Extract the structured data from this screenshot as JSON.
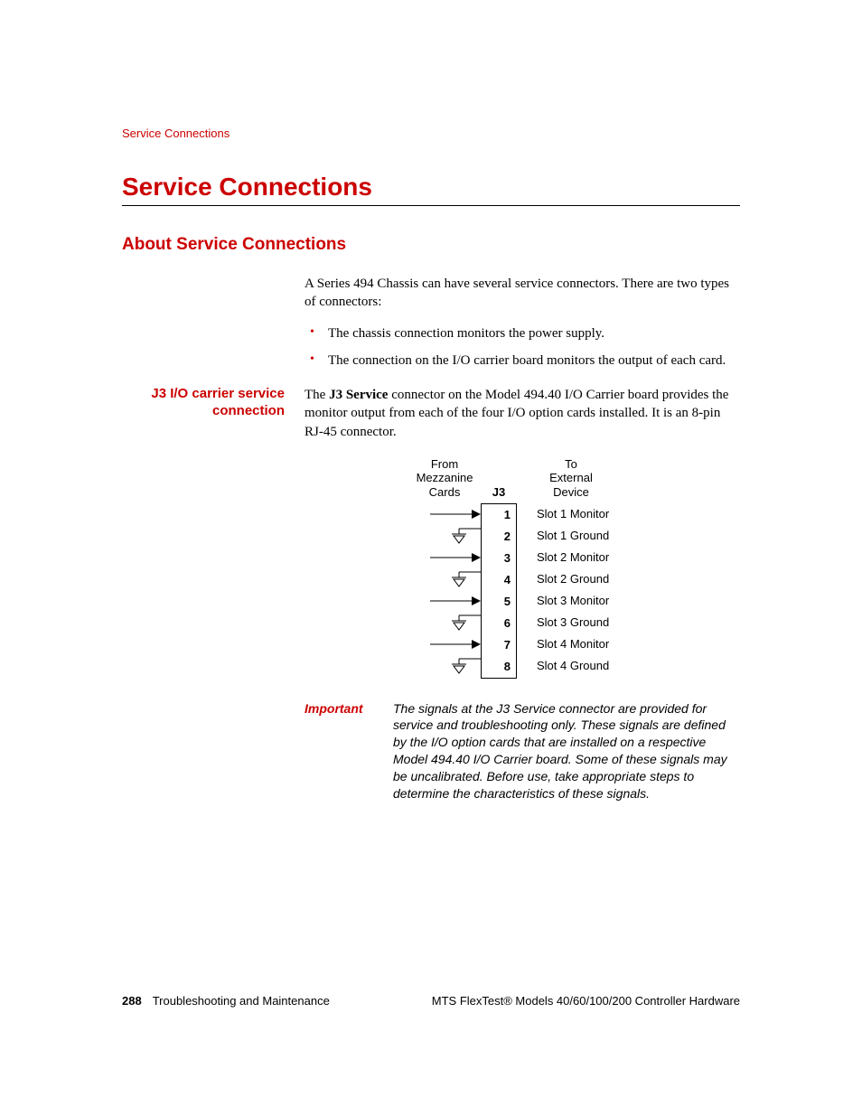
{
  "colors": {
    "brand": "#cc0000",
    "text": "#000000",
    "bg": "#ffffff"
  },
  "running_header": "Service Connections",
  "section_title": "Service Connections",
  "subsection_title": "About Service Connections",
  "intro_para": "A Series 494 Chassis can have several service connectors. There are two types of connectors:",
  "bullets": [
    "The chassis connection monitors the power supply.",
    "The connection on the I/O carrier board monitors the output of each card."
  ],
  "side_label": "J3 I/O carrier service connection",
  "j3_para_prefix": "The ",
  "j3_bold": "J3 Service",
  "j3_para_suffix": " connector on the Model 494.40 I/O Carrier board provides the monitor output from each of the four I/O option cards installed. It is an 8-pin RJ-45 connector.",
  "diagram": {
    "left_header": "From\nMezzanine\nCards",
    "mid_header": "J3",
    "right_header": "To\nExternal\nDevice",
    "pins": [
      {
        "n": "1",
        "label": "Slot 1 Monitor",
        "symbol": "arrow"
      },
      {
        "n": "2",
        "label": "Slot 1 Ground",
        "symbol": "ground"
      },
      {
        "n": "3",
        "label": "Slot 2 Monitor",
        "symbol": "arrow"
      },
      {
        "n": "4",
        "label": "Slot 2 Ground",
        "symbol": "ground"
      },
      {
        "n": "5",
        "label": "Slot 3 Monitor",
        "symbol": "arrow"
      },
      {
        "n": "6",
        "label": "Slot 3 Ground",
        "symbol": "ground"
      },
      {
        "n": "7",
        "label": "Slot 4 Monitor",
        "symbol": "arrow"
      },
      {
        "n": "8",
        "label": "Slot 4 Ground",
        "symbol": "ground"
      }
    ]
  },
  "important_label": "Important",
  "important_text": "The signals at the J3 Service connector are provided for service and troubleshooting only. These signals are defined by the I/O option cards that are installed on a respective Model 494.40 I/O Carrier board. Some of these signals may be uncalibrated. Before use, take appropriate steps to determine the characteristics of these signals.",
  "footer": {
    "page_number": "288",
    "left_text": "Troubleshooting and Maintenance",
    "right_text": "MTS FlexTest® Models 40/60/100/200 Controller Hardware"
  }
}
